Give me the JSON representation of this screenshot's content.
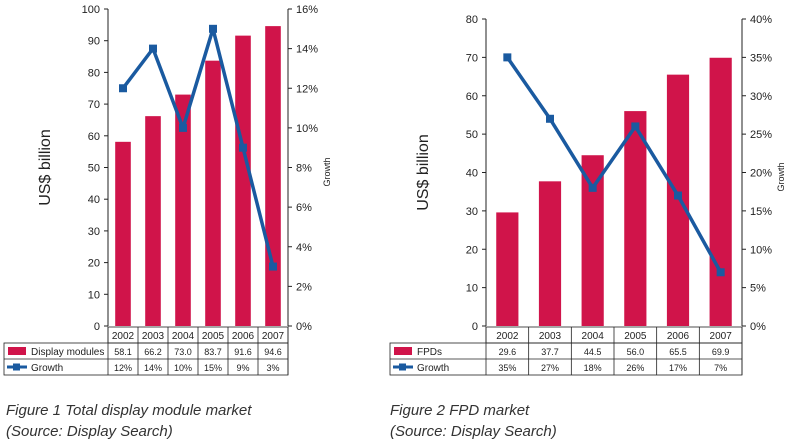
{
  "colors": {
    "bar": "#d0144a",
    "line": "#1a5aa0",
    "axis": "#222222"
  },
  "captions": [
    {
      "figure_label": "Figure 1",
      "title": "Total display module market",
      "source": "(Source: Display Search)"
    },
    {
      "figure_label": "Figure 2",
      "title": "FPD market",
      "source": "(Source: Display Search)"
    }
  ],
  "chart_data": [
    {
      "type": "bar",
      "categories": [
        "2002",
        "2003",
        "2004",
        "2005",
        "2006",
        "2007"
      ],
      "series": [
        {
          "name": "Display modules",
          "type": "bar",
          "axis": "left",
          "values": [
            58.1,
            66.2,
            73.0,
            83.7,
            91.6,
            94.6
          ],
          "table_values": [
            "58.1",
            "66.2",
            "73.0",
            "83.7",
            "91.6",
            "94.6"
          ]
        },
        {
          "name": "Growth",
          "type": "line",
          "axis": "right",
          "values": [
            12,
            14,
            10,
            15,
            9,
            3
          ],
          "table_values": [
            "12%",
            "14%",
            "10%",
            "15%",
            "9%",
            "3%"
          ]
        }
      ],
      "ylabel": "US$ billion",
      "y2label": "Growth",
      "ylim": [
        0,
        100
      ],
      "y_ticks": [
        "0",
        "10",
        "20",
        "30",
        "40",
        "50",
        "60",
        "70",
        "80",
        "90",
        "100"
      ],
      "y2lim": [
        0,
        16
      ],
      "y2_ticks": [
        "0%",
        "2%",
        "4%",
        "6%",
        "8%",
        "10%",
        "12%",
        "14%",
        "16%"
      ],
      "grid": false,
      "legend": "data table"
    },
    {
      "type": "bar",
      "categories": [
        "2002",
        "2003",
        "2004",
        "2005",
        "2006",
        "2007"
      ],
      "series": [
        {
          "name": "FPDs",
          "type": "bar",
          "axis": "left",
          "values": [
            29.6,
            37.7,
            44.5,
            56.0,
            65.5,
            69.9
          ],
          "table_values": [
            "29.6",
            "37.7",
            "44.5",
            "56.0",
            "65.5",
            "69.9"
          ]
        },
        {
          "name": "Growth",
          "type": "line",
          "axis": "right",
          "values": [
            35,
            27,
            18,
            26,
            17,
            7
          ],
          "table_values": [
            "35%",
            "27%",
            "18%",
            "26%",
            "17%",
            "7%"
          ]
        }
      ],
      "ylabel": "US$ billion",
      "y2label": "Growth",
      "ylim": [
        0,
        80
      ],
      "y_ticks": [
        "0",
        "10",
        "20",
        "30",
        "40",
        "50",
        "60",
        "70",
        "80"
      ],
      "y2lim": [
        0,
        40
      ],
      "y2_ticks": [
        "0%",
        "5%",
        "10%",
        "15%",
        "20%",
        "25%",
        "30%",
        "35%",
        "40%"
      ],
      "grid": false,
      "legend": "data table"
    }
  ]
}
